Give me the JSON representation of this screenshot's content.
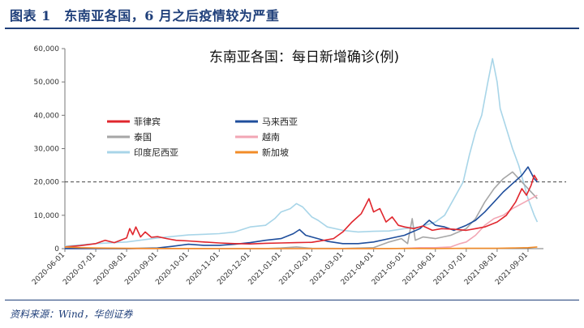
{
  "header": {
    "title": "图表 1　东南亚各国，6 月之后疫情较为严重"
  },
  "footer": {
    "source": "资料来源：Wind，华创证券"
  },
  "chart_data": {
    "type": "line",
    "title": "东南亚各国：每日新增确诊(例)",
    "xlabel": "",
    "ylabel": "",
    "ylim": [
      0,
      60000
    ],
    "yticks": [
      0,
      10000,
      20000,
      30000,
      40000,
      50000,
      60000
    ],
    "ytick_labels": [
      "0",
      "10,000",
      "20,000",
      "30,000",
      "40,000",
      "50,000",
      "60,000"
    ],
    "x_tick_labels": [
      "2020-06-01",
      "2020-07-01",
      "2020-08-01",
      "2020-09-01",
      "2020-10-01",
      "2020-11-01",
      "2020-12-01",
      "2021-01-01",
      "2021-02-01",
      "2021-03-01",
      "2021-04-01",
      "2021-05-01",
      "2021-06-01",
      "2021-07-01",
      "2021-08-01",
      "2021-09-01"
    ],
    "x_unit": "months since 2020-06-01",
    "xlim": [
      0,
      15.5
    ],
    "reference_line": {
      "value": 20000,
      "style": "dashed"
    },
    "legend": {
      "placement": "upper-left",
      "columns": 2
    },
    "series": [
      {
        "name": "菲律宾",
        "color": "#e0262d",
        "points": [
          [
            0.0,
            500
          ],
          [
            0.5,
            900
          ],
          [
            1.0,
            1500
          ],
          [
            1.3,
            2500
          ],
          [
            1.6,
            1800
          ],
          [
            2.0,
            3200
          ],
          [
            2.1,
            6000
          ],
          [
            2.2,
            4200
          ],
          [
            2.3,
            6500
          ],
          [
            2.45,
            3500
          ],
          [
            2.6,
            5000
          ],
          [
            2.8,
            3400
          ],
          [
            3.0,
            3600
          ],
          [
            3.3,
            3000
          ],
          [
            3.6,
            2500
          ],
          [
            4.0,
            2300
          ],
          [
            4.5,
            2000
          ],
          [
            5.0,
            1700
          ],
          [
            5.5,
            1500
          ],
          [
            6.0,
            1400
          ],
          [
            6.5,
            1600
          ],
          [
            7.0,
            1700
          ],
          [
            7.5,
            1800
          ],
          [
            8.0,
            1900
          ],
          [
            8.4,
            2500
          ],
          [
            8.7,
            3000
          ],
          [
            9.0,
            5000
          ],
          [
            9.3,
            8000
          ],
          [
            9.6,
            10500
          ],
          [
            9.85,
            15000
          ],
          [
            10.0,
            11000
          ],
          [
            10.2,
            12000
          ],
          [
            10.4,
            8000
          ],
          [
            10.6,
            9500
          ],
          [
            10.8,
            7000
          ],
          [
            11.0,
            6500
          ],
          [
            11.3,
            6000
          ],
          [
            11.6,
            6800
          ],
          [
            11.9,
            5500
          ],
          [
            12.2,
            6000
          ],
          [
            12.6,
            5800
          ],
          [
            13.0,
            5500
          ],
          [
            13.3,
            6000
          ],
          [
            13.6,
            6500
          ],
          [
            14.0,
            8000
          ],
          [
            14.3,
            10000
          ],
          [
            14.6,
            14000
          ],
          [
            14.8,
            18000
          ],
          [
            14.95,
            16000
          ],
          [
            15.1,
            19000
          ],
          [
            15.2,
            22000
          ],
          [
            15.3,
            20500
          ]
        ]
      },
      {
        "name": "马来西亚",
        "color": "#1f4e9c",
        "points": [
          [
            0.0,
            30
          ],
          [
            1.0,
            50
          ],
          [
            2.0,
            30
          ],
          [
            3.0,
            200
          ],
          [
            3.5,
            700
          ],
          [
            4.0,
            1300
          ],
          [
            4.5,
            1000
          ],
          [
            5.0,
            1000
          ],
          [
            5.5,
            1300
          ],
          [
            6.0,
            1800
          ],
          [
            6.5,
            2500
          ],
          [
            7.0,
            3000
          ],
          [
            7.4,
            4500
          ],
          [
            7.6,
            5700
          ],
          [
            7.8,
            4000
          ],
          [
            8.0,
            3500
          ],
          [
            8.5,
            2200
          ],
          [
            9.0,
            1500
          ],
          [
            9.5,
            1500
          ],
          [
            10.0,
            2000
          ],
          [
            10.5,
            3000
          ],
          [
            11.0,
            4000
          ],
          [
            11.5,
            6000
          ],
          [
            11.8,
            8500
          ],
          [
            12.0,
            7000
          ],
          [
            12.3,
            6500
          ],
          [
            12.6,
            5500
          ],
          [
            13.0,
            7000
          ],
          [
            13.3,
            8500
          ],
          [
            13.6,
            11000
          ],
          [
            13.9,
            14000
          ],
          [
            14.2,
            17000
          ],
          [
            14.5,
            19500
          ],
          [
            14.8,
            22000
          ],
          [
            15.0,
            24500
          ],
          [
            15.2,
            21000
          ],
          [
            15.3,
            20000
          ]
        ]
      },
      {
        "name": "泰国",
        "color": "#a6a6a6",
        "points": [
          [
            0.0,
            10
          ],
          [
            6.5,
            30
          ],
          [
            7.0,
            200
          ],
          [
            7.5,
            500
          ],
          [
            8.0,
            100
          ],
          [
            9.0,
            50
          ],
          [
            10.0,
            300
          ],
          [
            10.5,
            2000
          ],
          [
            10.9,
            3000
          ],
          [
            11.1,
            1500
          ],
          [
            11.25,
            9000
          ],
          [
            11.35,
            2500
          ],
          [
            11.6,
            3500
          ],
          [
            12.0,
            3000
          ],
          [
            12.5,
            4000
          ],
          [
            13.0,
            6000
          ],
          [
            13.3,
            9000
          ],
          [
            13.6,
            14000
          ],
          [
            13.9,
            18000
          ],
          [
            14.2,
            21000
          ],
          [
            14.5,
            23000
          ],
          [
            14.8,
            20000
          ],
          [
            15.0,
            18000
          ],
          [
            15.2,
            16000
          ],
          [
            15.3,
            15000
          ]
        ]
      },
      {
        "name": "越南",
        "color": "#f2a6b4",
        "points": [
          [
            0.0,
            5
          ],
          [
            10.5,
            10
          ],
          [
            11.0,
            100
          ],
          [
            11.5,
            300
          ],
          [
            12.0,
            300
          ],
          [
            12.5,
            500
          ],
          [
            12.8,
            1500
          ],
          [
            13.0,
            2000
          ],
          [
            13.3,
            4000
          ],
          [
            13.6,
            7000
          ],
          [
            13.9,
            9000
          ],
          [
            14.2,
            10000
          ],
          [
            14.5,
            12000
          ],
          [
            14.8,
            13500
          ],
          [
            15.0,
            14500
          ],
          [
            15.2,
            15500
          ],
          [
            15.3,
            16000
          ]
        ]
      },
      {
        "name": "印度尼西亚",
        "color": "#a8d5e8",
        "points": [
          [
            0.0,
            700
          ],
          [
            1.0,
            1500
          ],
          [
            2.0,
            2000
          ],
          [
            3.0,
            3200
          ],
          [
            4.0,
            4100
          ],
          [
            5.0,
            4500
          ],
          [
            5.5,
            5000
          ],
          [
            6.0,
            6500
          ],
          [
            6.5,
            7000
          ],
          [
            6.8,
            9000
          ],
          [
            7.0,
            11000
          ],
          [
            7.3,
            12000
          ],
          [
            7.5,
            13500
          ],
          [
            7.7,
            12500
          ],
          [
            7.9,
            10500
          ],
          [
            8.0,
            9500
          ],
          [
            8.2,
            8500
          ],
          [
            8.5,
            6500
          ],
          [
            9.0,
            5500
          ],
          [
            9.5,
            5000
          ],
          [
            10.0,
            5200
          ],
          [
            10.5,
            5300
          ],
          [
            11.0,
            6000
          ],
          [
            11.5,
            6500
          ],
          [
            12.0,
            8000
          ],
          [
            12.3,
            10000
          ],
          [
            12.6,
            15000
          ],
          [
            12.9,
            20000
          ],
          [
            13.1,
            28000
          ],
          [
            13.3,
            35000
          ],
          [
            13.5,
            40000
          ],
          [
            13.7,
            50000
          ],
          [
            13.85,
            57000
          ],
          [
            14.0,
            50000
          ],
          [
            14.1,
            42000
          ],
          [
            14.3,
            36000
          ],
          [
            14.5,
            30000
          ],
          [
            14.7,
            25000
          ],
          [
            14.85,
            20000
          ],
          [
            15.0,
            15000
          ],
          [
            15.2,
            10000
          ],
          [
            15.3,
            8000
          ]
        ]
      },
      {
        "name": "新加坡",
        "color": "#f28c28",
        "points": [
          [
            0.0,
            500
          ],
          [
            0.5,
            300
          ],
          [
            1.0,
            200
          ],
          [
            2.0,
            100
          ],
          [
            3.0,
            40
          ],
          [
            5.0,
            10
          ],
          [
            8.0,
            10
          ],
          [
            10.0,
            20
          ],
          [
            11.0,
            40
          ],
          [
            12.0,
            30
          ],
          [
            13.0,
            100
          ],
          [
            14.0,
            100
          ],
          [
            14.5,
            200
          ],
          [
            15.0,
            300
          ],
          [
            15.3,
            500
          ]
        ]
      }
    ]
  }
}
